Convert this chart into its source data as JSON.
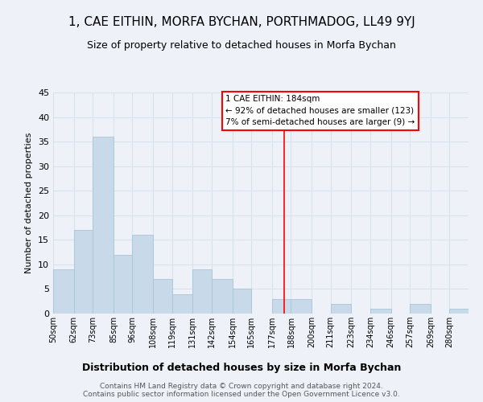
{
  "title": "1, CAE EITHIN, MORFA BYCHAN, PORTHMADOG, LL49 9YJ",
  "subtitle": "Size of property relative to detached houses in Morfa Bychan",
  "xlabel": "Distribution of detached houses by size in Morfa Bychan",
  "ylabel": "Number of detached properties",
  "categories": [
    "50sqm",
    "62sqm",
    "73sqm",
    "85sqm",
    "96sqm",
    "108sqm",
    "119sqm",
    "131sqm",
    "142sqm",
    "154sqm",
    "165sqm",
    "177sqm",
    "188sqm",
    "200sqm",
    "211sqm",
    "223sqm",
    "234sqm",
    "246sqm",
    "257sqm",
    "269sqm",
    "280sqm"
  ],
  "values": [
    9,
    17,
    36,
    12,
    16,
    7,
    4,
    9,
    7,
    5,
    0,
    3,
    3,
    0,
    2,
    0,
    1,
    0,
    2,
    0,
    1
  ],
  "bar_color": "#c8daea",
  "bar_edge_color": "#a8c4d8",
  "grid_color": "#d8e2ee",
  "background_color": "#eef2f8",
  "annotation_text": "1 CAE EITHIN: 184sqm\n← 92% of detached houses are smaller (123)\n7% of semi-detached houses are larger (9) →",
  "annotation_box_color": "white",
  "annotation_box_edge_color": "red",
  "vline_x": 184,
  "vline_color": "red",
  "footer": "Contains HM Land Registry data © Crown copyright and database right 2024.\nContains public sector information licensed under the Open Government Licence v3.0.",
  "ylim": [
    0,
    45
  ],
  "yticks": [
    0,
    5,
    10,
    15,
    20,
    25,
    30,
    35,
    40,
    45
  ],
  "bin_edges": [
    50,
    62,
    73,
    85,
    96,
    108,
    119,
    131,
    142,
    154,
    165,
    177,
    188,
    200,
    211,
    223,
    234,
    246,
    257,
    269,
    280,
    291
  ]
}
